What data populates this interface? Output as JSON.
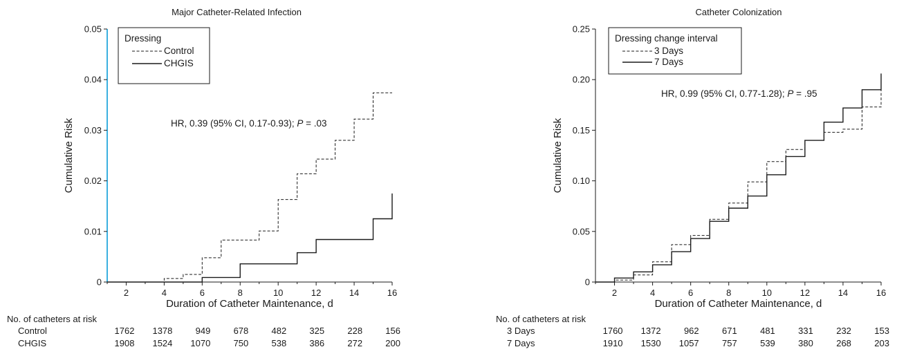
{
  "chart_data": [
    {
      "type": "line",
      "step": true,
      "title": "Major Catheter-Related Infection",
      "xlabel": "Duration of Catheter Maintenance, d",
      "ylabel": "Cumulative Risk",
      "xlim": [
        1,
        16
      ],
      "ylim": [
        0,
        0.05
      ],
      "xticks": [
        2,
        4,
        6,
        8,
        10,
        12,
        14,
        16
      ],
      "yticks": [
        "0",
        "0.01",
        "0.02",
        "0.03",
        "0.04",
        "0.05"
      ],
      "legend": {
        "title": "Dressing",
        "placement": "top-left",
        "entries": [
          "Control",
          "CHGIS"
        ]
      },
      "annotation": {
        "prefix": "HR, 0.39 (95% CI, 0.17-0.93); ",
        "p": "P",
        "suffix": " = .03"
      },
      "series": [
        {
          "name": "Control",
          "style": "dashed",
          "x": [
            1,
            4,
            5,
            6,
            7,
            9,
            10,
            11,
            12,
            13,
            14,
            15,
            16
          ],
          "y": [
            0,
            0.0007,
            0.0015,
            0.0048,
            0.0083,
            0.0101,
            0.0163,
            0.0214,
            0.0243,
            0.028,
            0.0322,
            0.0374,
            0.0374
          ]
        },
        {
          "name": "CHGIS",
          "style": "solid",
          "x": [
            1,
            6,
            8,
            11,
            12,
            15,
            16
          ],
          "y": [
            0,
            0.0009,
            0.0036,
            0.0058,
            0.0084,
            0.0125,
            0.0175
          ]
        }
      ],
      "at_risk": {
        "heading": "No. of catheters at risk",
        "rows": [
          {
            "label": "Control",
            "values": [
              "1762",
              "1378",
              "949",
              "678",
              "482",
              "325",
              "228",
              "156"
            ]
          },
          {
            "label": "CHGIS",
            "values": [
              "1908",
              "1524",
              "1070",
              "750",
              "538",
              "386",
              "272",
              "200"
            ]
          }
        ]
      }
    },
    {
      "type": "line",
      "step": true,
      "title": "Catheter Colonization",
      "xlabel": "Duration of Catheter Maintenance, d",
      "ylabel": "Cumulative Risk",
      "xlim": [
        1,
        16
      ],
      "ylim": [
        0,
        0.25
      ],
      "xticks": [
        2,
        4,
        6,
        8,
        10,
        12,
        14,
        16
      ],
      "yticks": [
        "0",
        "0.05",
        "0.10",
        "0.15",
        "0.20",
        "0.25"
      ],
      "legend": {
        "title": "Dressing change interval",
        "placement": "top-left",
        "entries": [
          "3 Days",
          "7 Days"
        ]
      },
      "annotation": {
        "prefix": "HR, 0.99 (95% CI, 0.77-1.28); ",
        "p": "P",
        "suffix": " = .95"
      },
      "series": [
        {
          "name": "3 Days",
          "style": "dashed",
          "x": [
            1,
            2,
            3,
            4,
            5,
            6,
            7,
            8,
            9,
            10,
            11,
            12,
            13,
            14,
            15,
            16
          ],
          "y": [
            0,
            0.002,
            0.007,
            0.02,
            0.037,
            0.046,
            0.062,
            0.078,
            0.099,
            0.119,
            0.131,
            0.14,
            0.148,
            0.151,
            0.173,
            0.19
          ]
        },
        {
          "name": "7 Days",
          "style": "solid",
          "x": [
            1,
            2,
            3,
            4,
            5,
            6,
            7,
            8,
            9,
            10,
            11,
            12,
            13,
            14,
            15,
            16
          ],
          "y": [
            0,
            0.004,
            0.01,
            0.017,
            0.03,
            0.043,
            0.06,
            0.073,
            0.085,
            0.106,
            0.124,
            0.14,
            0.158,
            0.172,
            0.19,
            0.206
          ]
        }
      ],
      "at_risk": {
        "heading": "No. of catheters at risk",
        "rows": [
          {
            "label": "3 Days",
            "values": [
              "1760",
              "1372",
              "962",
              "671",
              "481",
              "331",
              "232",
              "153"
            ]
          },
          {
            "label": "7 Days",
            "values": [
              "1910",
              "1530",
              "1057",
              "757",
              "539",
              "380",
              "268",
              "203"
            ]
          }
        ]
      }
    }
  ],
  "colors": {
    "axis": "#1a1a1a",
    "left_axis_accent": "#3ab0e0",
    "text": "#1a1a1a"
  }
}
